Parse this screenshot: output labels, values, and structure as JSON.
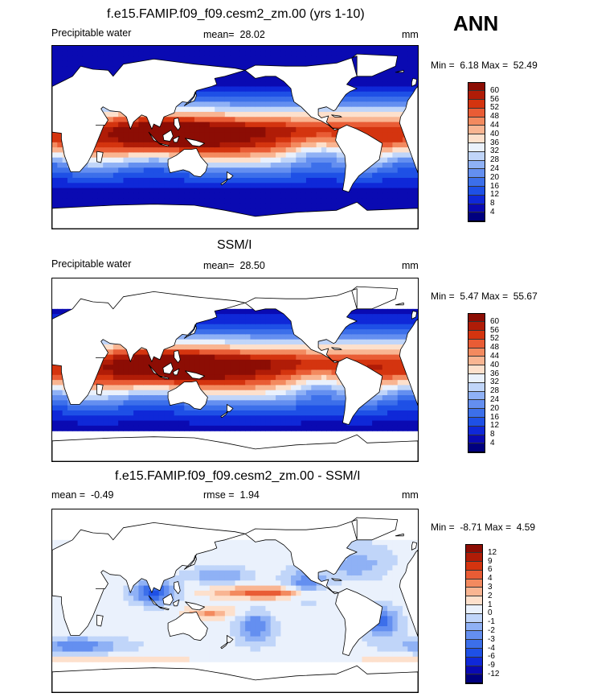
{
  "figure": {
    "season_label": "ANN"
  },
  "chart_data": [
    {
      "type": "heatmap",
      "title": "f.e15.FAMIP.f09_f09.cesm2_zm.00 (yrs 1-10)",
      "left_label": "Precipitable water",
      "mean_label": "mean=",
      "mean_value": "28.02",
      "units": "mm",
      "min_label": "Min =",
      "min_value": "6.18",
      "max_label": "Max =",
      "max_value": "52.49",
      "colorbar": {
        "levels": [
          "4",
          "8",
          "12",
          "16",
          "20",
          "24",
          "28",
          "32",
          "36",
          "40",
          "44",
          "48",
          "52",
          "56",
          "60"
        ],
        "colors": [
          "#00007f",
          "#0a0ab2",
          "#0f28d8",
          "#1e50e6",
          "#3c6fea",
          "#648ff0",
          "#8fb1f5",
          "#c0d5f9",
          "#eaf1fc",
          "#fde0cc",
          "#f9b592",
          "#f38a5f",
          "#e95c35",
          "#d4340f",
          "#b01c07",
          "#8c0d04"
        ]
      },
      "field": "wet"
    },
    {
      "type": "heatmap",
      "title": "SSM/I",
      "left_label": "Precipitable water",
      "mean_label": "mean=",
      "mean_value": "28.50",
      "units": "mm",
      "min_label": "Min =",
      "min_value": "5.47",
      "max_label": "Max =",
      "max_value": "55.67",
      "colorbar": {
        "levels": [
          "4",
          "8",
          "12",
          "16",
          "20",
          "24",
          "28",
          "32",
          "36",
          "40",
          "44",
          "48",
          "52",
          "56",
          "60"
        ],
        "colors": [
          "#00007f",
          "#0a0ab2",
          "#0f28d8",
          "#1e50e6",
          "#3c6fea",
          "#648ff0",
          "#8fb1f5",
          "#c0d5f9",
          "#eaf1fc",
          "#fde0cc",
          "#f9b592",
          "#f38a5f",
          "#e95c35",
          "#d4340f",
          "#b01c07",
          "#8c0d04"
        ]
      },
      "field": "obs"
    },
    {
      "type": "heatmap",
      "title": "f.e15.FAMIP.f09_f09.cesm2_zm.00 - SSM/I",
      "left_label": "mean =",
      "left_value": "-0.49",
      "mean_label": "rmse =",
      "mean_value": "1.94",
      "units": "mm",
      "min_label": "Min =",
      "min_value": "-8.71",
      "max_label": "Max =",
      "max_value": "4.59",
      "colorbar": {
        "levels": [
          "-12",
          "-9",
          "-6",
          "-4",
          "-3",
          "-2",
          "-1",
          "0",
          "1",
          "2",
          "3",
          "4",
          "6",
          "9",
          "12"
        ],
        "colors": [
          "#00007f",
          "#0a0ab2",
          "#0f28d8",
          "#1e50e6",
          "#3c6fea",
          "#648ff0",
          "#8fb1f5",
          "#c0d5f9",
          "#eaf1fc",
          "#fde0cc",
          "#f9b592",
          "#f38a5f",
          "#e95c35",
          "#d4340f",
          "#b01c07",
          "#8c0d04"
        ]
      },
      "field": "diff"
    }
  ]
}
